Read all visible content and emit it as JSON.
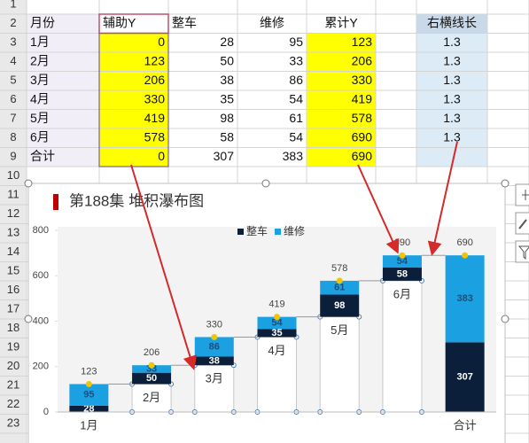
{
  "sheet": {
    "row_numbers": [
      1,
      2,
      3,
      4,
      5,
      6,
      7,
      8,
      9,
      10,
      11,
      12,
      13,
      14,
      15,
      16,
      17,
      18,
      19,
      20,
      21,
      22,
      23
    ],
    "header": [
      "月份",
      "辅助Y",
      "整车",
      "维修",
      "累计Y",
      "右横线长"
    ],
    "rows": [
      [
        "1月",
        0,
        28,
        95,
        123,
        1.3
      ],
      [
        "2月",
        123,
        50,
        33,
        206,
        1.3
      ],
      [
        "3月",
        206,
        38,
        86,
        330,
        1.3
      ],
      [
        "4月",
        330,
        35,
        54,
        419,
        1.3
      ],
      [
        "5月",
        419,
        98,
        61,
        578,
        1.3
      ],
      [
        "6月",
        578,
        58,
        54,
        690,
        1.3
      ],
      [
        "合计",
        0,
        307,
        383,
        690
      ]
    ]
  },
  "chart_data": {
    "type": "stacked_bar",
    "title": "第188集 堆积瀑布图",
    "categories": [
      "1月",
      "2月",
      "3月",
      "4月",
      "5月",
      "6月",
      "合计"
    ],
    "series": [
      {
        "name": "辅助Y",
        "color": "#ffffff",
        "legend": false,
        "labels": false,
        "values": [
          0,
          123,
          206,
          330,
          419,
          578,
          0
        ]
      },
      {
        "name": "整车",
        "color": "#0c1f3a",
        "legend": true,
        "labels": true,
        "values": [
          28,
          50,
          38,
          35,
          98,
          58,
          307
        ]
      },
      {
        "name": "维修",
        "color": "#1ba1e2",
        "legend": true,
        "labels": true,
        "values": [
          95,
          33,
          86,
          54,
          61,
          54,
          383
        ]
      }
    ],
    "totals": {
      "color": "#f2c500",
      "values": [
        123,
        206,
        330,
        419,
        578,
        690,
        690
      ]
    },
    "ylim": [
      0,
      800
    ],
    "yticks": [
      0,
      200,
      400,
      600,
      800
    ],
    "legend": "top"
  }
}
